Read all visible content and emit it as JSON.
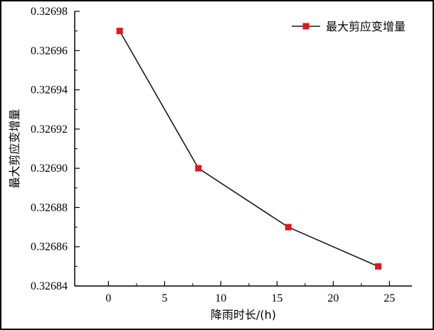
{
  "chart_data": {
    "type": "line",
    "xlabel": "降雨时长/(h)",
    "ylabel": "最大剪应变增量",
    "x": [
      1,
      8,
      16,
      24
    ],
    "series": [
      {
        "name": "最大剪应变增量",
        "values": [
          0.32697,
          0.3269,
          0.32687,
          0.32685
        ],
        "line_color": "#1a1a1a",
        "marker": "square",
        "marker_color": "#e8141a"
      }
    ],
    "xlim": [
      -3,
      27
    ],
    "ylim": [
      0.32684,
      0.32698
    ],
    "x_ticks": [
      "0",
      "5",
      "10",
      "15",
      "20",
      "25"
    ],
    "y_ticks": [
      "0.32684",
      "0.32686",
      "0.32688",
      "0.32690",
      "0.32692",
      "0.32694",
      "0.32696",
      "0.32698"
    ],
    "grid": false,
    "legend_position": "top-right"
  }
}
